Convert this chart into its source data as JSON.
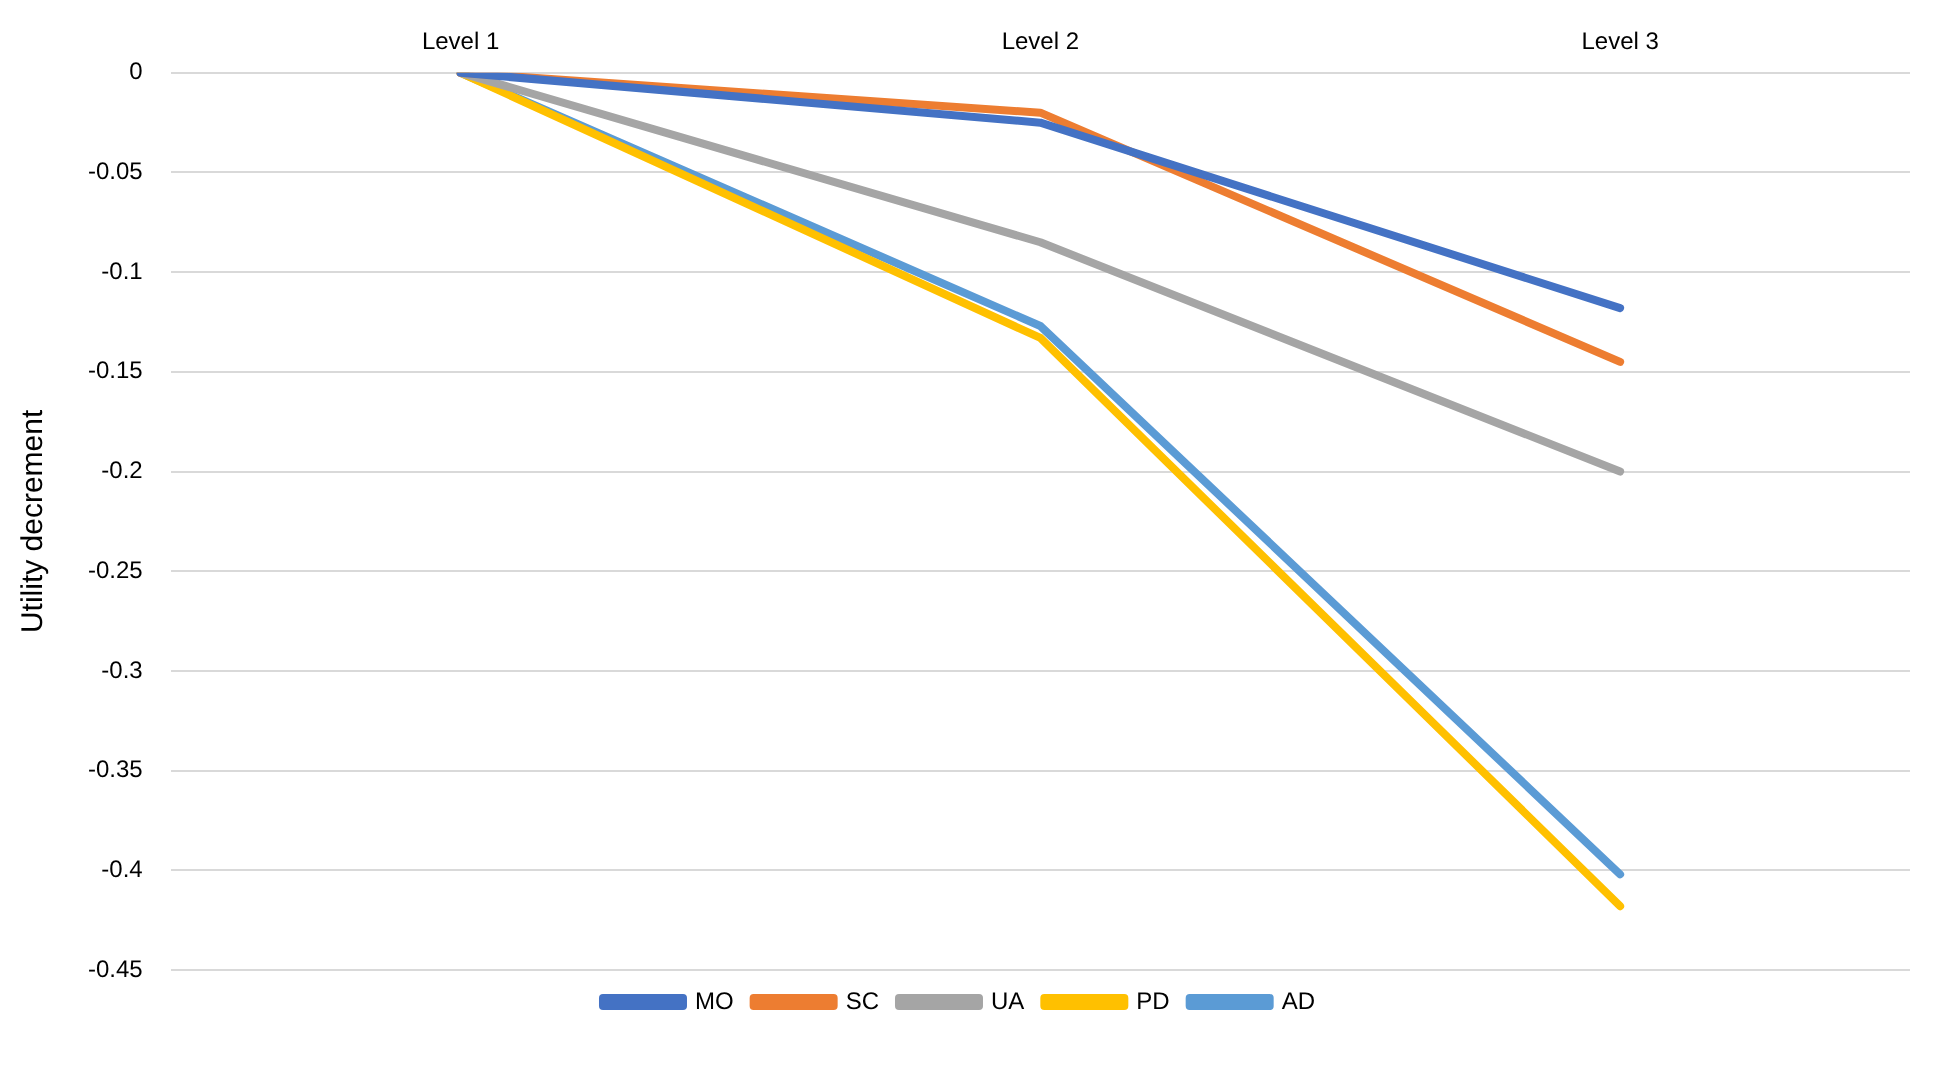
{
  "chart_data": {
    "type": "line",
    "ylabel": "Utility decrement",
    "categories": [
      "Level 1",
      "Level 2",
      "Level 3"
    ],
    "series": [
      {
        "name": "MO",
        "color": "#4472c4",
        "values": [
          0,
          -0.025,
          -0.118
        ]
      },
      {
        "name": "SC",
        "color": "#ed7d31",
        "values": [
          0,
          -0.02,
          -0.145
        ]
      },
      {
        "name": "UA",
        "color": "#a5a5a5",
        "values": [
          0,
          -0.085,
          -0.2
        ]
      },
      {
        "name": "PD",
        "color": "#ffc000",
        "values": [
          0,
          -0.133,
          -0.418
        ]
      },
      {
        "name": "AD",
        "color": "#5b9bd5",
        "values": [
          0,
          -0.127,
          -0.402
        ]
      }
    ],
    "ylim": [
      -0.45,
      0
    ],
    "yticks": [
      0,
      -0.05,
      -0.1,
      -0.15,
      -0.2,
      -0.25,
      -0.3,
      -0.35,
      -0.4,
      -0.45
    ],
    "grid": "y",
    "legend": "bottom",
    "marker": "none",
    "line_style": "solid"
  }
}
